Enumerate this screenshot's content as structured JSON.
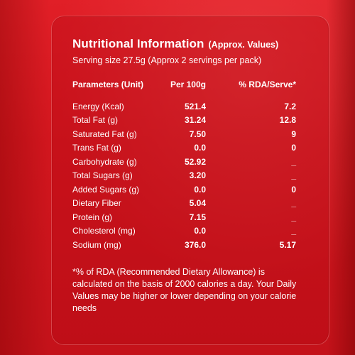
{
  "label": {
    "title": "Nutritional Information",
    "title_note": "(Approx. Values)",
    "serving": "Serving size 27.5g (Approx 2 servings per pack)",
    "headers": {
      "parameter": "Parameters (Unit)",
      "per100": "Per 100g",
      "rda": "% RDA/Serve*"
    },
    "rows": [
      {
        "name": "Energy (Kcal)",
        "per100": "521.4",
        "rda": "7.2"
      },
      {
        "name": "Total Fat (g)",
        "per100": "31.24",
        "rda": "12.8"
      },
      {
        "name": "Saturated Fat (g)",
        "per100": "7.50",
        "rda": "9"
      },
      {
        "name": "Trans Fat (g)",
        "per100": "0.0",
        "rda": "0"
      },
      {
        "name": "Carbohydrate (g)",
        "per100": "52.92",
        "rda": "_"
      },
      {
        "name": "Total Sugars (g)",
        "per100": "3.20",
        "rda": "_"
      },
      {
        "name": "Added Sugars (g)",
        "per100": "0.0",
        "rda": "0"
      },
      {
        "name": "Dietary Fiber",
        "per100": "5.04",
        "rda": "_"
      },
      {
        "name": "Protein (g)",
        "per100": "7.15",
        "rda": "_"
      },
      {
        "name": "Cholesterol (mg)",
        "per100": "0.0",
        "rda": "_"
      },
      {
        "name": "Sodium (mg)",
        "per100": "376.0",
        "rda": "5.17"
      }
    ],
    "footnote": "*% of RDA (Recommended Dietary Allowance) is calculated on the basis of 2000 calories a day. Your Daily Values may be higher or lower depending on your calorie needs"
  },
  "colors": {
    "background": "#d81a22",
    "text": "#ffffff"
  }
}
